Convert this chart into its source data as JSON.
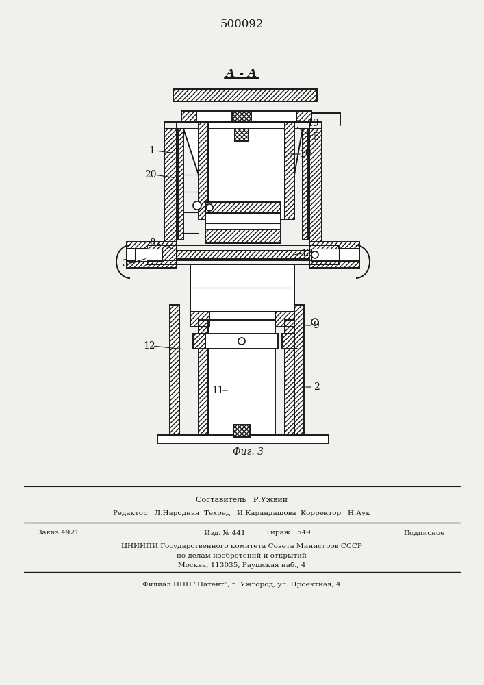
{
  "patent_number": "500092",
  "title_label": "А - А",
  "fig_label": "Фиг. 3",
  "bg_color": "#f2f0ed",
  "line_color": "#1a1a1a",
  "label_color": "#111111",
  "white": "#ffffff",
  "footer": {
    "line1": "Составитель   Р.Ужвий",
    "line2": "Редактор   Л.Народная  Техред   И.Карандашова  Корректор   Н.Аук",
    "zakaz": "Заказ 4921",
    "izd": "Изд. № 441",
    "tirazh": "Тираж   549",
    "podp": "Подписное",
    "inst1": "ЦНИИПИ Государственного комитета Совета Министров СССР",
    "inst2": "по делам изобретений и открытий",
    "inst3": "Москва, 113035, Раушская наб., 4",
    "filial": "Филиал ППП \"Патент\", г. Ужгород, ул. Проектная, 4"
  }
}
